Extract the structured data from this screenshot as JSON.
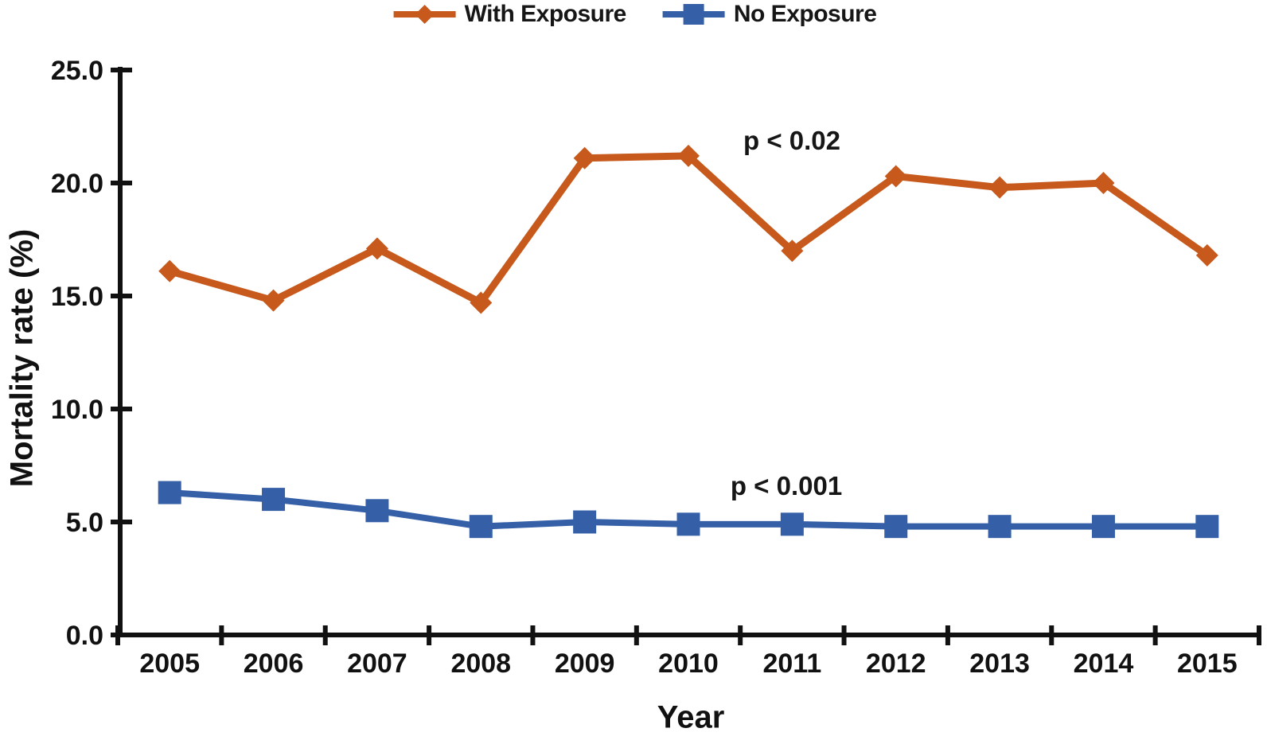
{
  "figure": {
    "background": "#ffffff",
    "axis_color": "#111111",
    "text_color": "#161616"
  },
  "legend": {
    "items": [
      {
        "label": "With Exposure",
        "color": "#C6591B",
        "marker": "diamond"
      },
      {
        "label": "No Exposure",
        "color": "#3560A8",
        "marker": "square"
      }
    ]
  },
  "chart_data": {
    "type": "line",
    "title": "",
    "xlabel": "Year",
    "ylabel": "Mortality rate (%)",
    "categories": [
      "2005",
      "2006",
      "2007",
      "2008",
      "2009",
      "2010",
      "2011",
      "2012",
      "2013",
      "2014",
      "2015"
    ],
    "series": [
      {
        "name": "With Exposure",
        "color": "#C6591B",
        "marker": "diamond",
        "line_width": 9,
        "values": [
          16.1,
          14.8,
          17.1,
          14.7,
          21.1,
          21.2,
          17.0,
          20.3,
          19.8,
          20.0,
          16.8
        ]
      },
      {
        "name": "No Exposure",
        "color": "#3560A8",
        "marker": "square",
        "line_width": 8,
        "values": [
          6.3,
          6.0,
          5.5,
          4.8,
          5.0,
          4.9,
          4.9,
          4.8,
          4.8,
          4.8,
          4.8
        ]
      }
    ],
    "ylim": [
      0,
      25
    ],
    "y_tick_labels": [
      "0.0",
      "5.0",
      "10.0",
      "15.0",
      "20.0",
      "25.0"
    ],
    "y_tick_values": [
      0,
      5,
      10,
      15,
      20,
      25
    ],
    "grid": "off",
    "legend_position": "top-center",
    "annotations": [
      {
        "text": "p < 0.02",
        "series": "With Exposure",
        "x_index": 6.0,
        "y_value": 21.8
      },
      {
        "text": "p < 0.001",
        "series": "No Exposure",
        "x_index": 5.95,
        "y_value": 6.6
      }
    ]
  }
}
